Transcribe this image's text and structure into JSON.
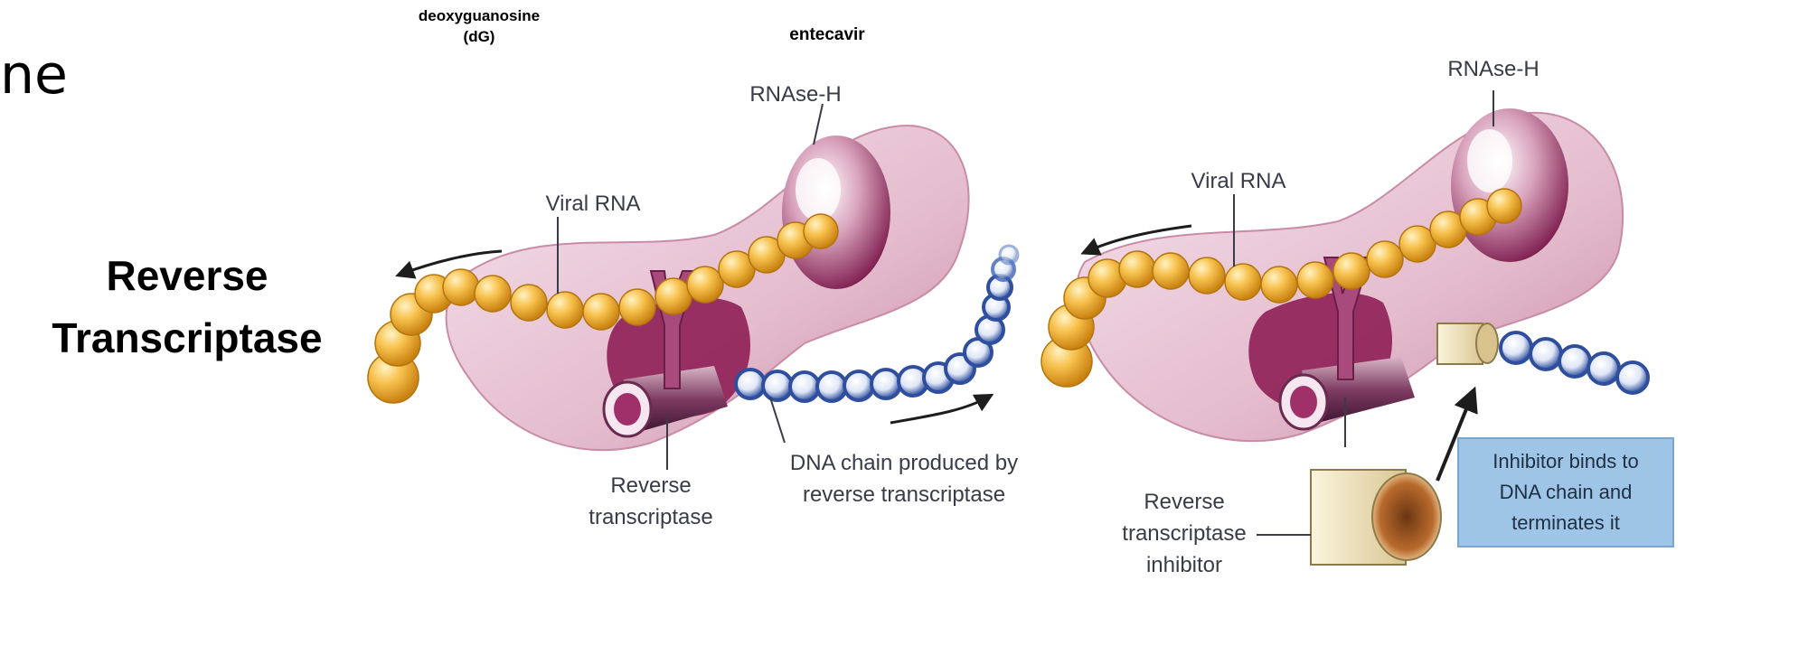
{
  "slide": {
    "partial_word": "ne",
    "title_line1": "Reverse",
    "title_line2": "Transcriptase",
    "top_label_dg_line1": "deoxyguanosine",
    "top_label_dg_line2": "(dG)",
    "top_label_entecavir": "entecavir"
  },
  "left_panel": {
    "rnase_label": "RNAse-H",
    "viral_rna_label": "Viral RNA",
    "rt_label_line1": "Reverse",
    "rt_label_line2": "transcriptase",
    "dna_label_line1": "DNA chain produced by",
    "dna_label_line2": "reverse transcriptase"
  },
  "right_panel": {
    "rnase_label": "RNAse-H",
    "viral_rna_label": "Viral RNA",
    "inhibitor_label_line1": "Reverse",
    "inhibitor_label_line2": "transcriptase",
    "inhibitor_label_line3": "inhibitor",
    "callout_line1": "Inhibitor binds to",
    "callout_line2": "DNA chain and",
    "callout_line3": "terminates it"
  },
  "colors": {
    "protein": "#e9c7d6",
    "protein_dark": "#8e1f55",
    "rna_bead": "#f5b63c",
    "dna_bead": "#2f4f9e",
    "callout_bg": "#9ec5e6",
    "inhibitor": "#efe3bf"
  }
}
